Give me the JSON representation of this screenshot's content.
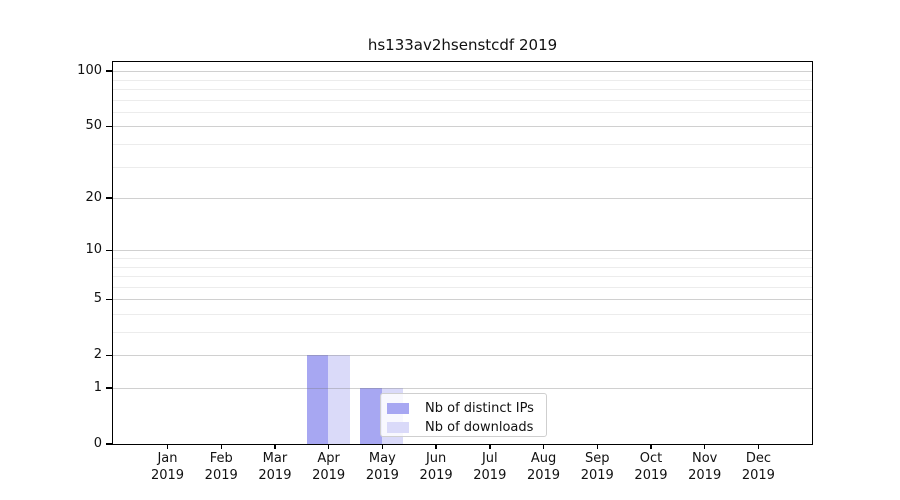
{
  "chart_data": {
    "type": "bar",
    "title": "hs133av2hsenstcdf 2019",
    "categories": [
      "Jan",
      "Feb",
      "Mar",
      "Apr",
      "May",
      "Jun",
      "Jul",
      "Aug",
      "Sep",
      "Oct",
      "Nov",
      "Dec"
    ],
    "category_sublabel": "2019",
    "series": [
      {
        "name": "Nb of distinct IPs",
        "color": "#a7a7f2",
        "values": [
          0,
          0,
          0,
          2,
          1,
          0,
          0,
          0,
          0,
          0,
          0,
          0
        ]
      },
      {
        "name": "Nb of downloads",
        "color": "#dadaf9",
        "values": [
          0,
          0,
          0,
          2,
          1,
          0,
          0,
          0,
          0,
          0,
          0,
          0
        ]
      }
    ],
    "yscale": "log1p",
    "ylim": [
      0,
      112
    ],
    "y_major_ticks": [
      0,
      1,
      2,
      5,
      10,
      20,
      50,
      100
    ],
    "y_minor_gridlines": [
      3,
      4,
      6,
      7,
      8,
      9,
      30,
      40,
      60,
      70,
      80,
      90
    ],
    "grid": "horizontal",
    "xlabel": "",
    "ylabel": "",
    "legend_position": "inside-lower-center",
    "colors": {
      "bar_distinct_ips": "#a7a7f2",
      "bar_downloads": "#dadaf9",
      "spine": "#000000",
      "major_grid": "#c9c9c9",
      "minor_grid": "#ececec",
      "text": "#111111",
      "background": "#ffffff",
      "legend_border": "#cfcfcf"
    }
  }
}
